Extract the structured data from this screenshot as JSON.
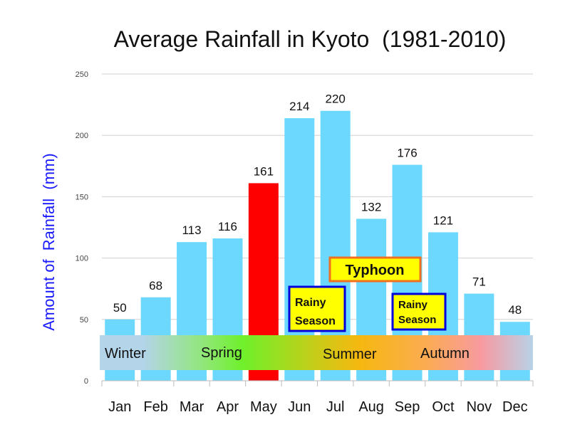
{
  "chart_data": {
    "type": "bar",
    "title": "Average Rainfall in Kyoto  (1981-2010)",
    "xlabel": "",
    "ylabel": "Amount of  Rainfall  (mm)",
    "ylim": [
      0,
      250
    ],
    "yticks": [
      0,
      50,
      100,
      150,
      200,
      250
    ],
    "grid": true,
    "categories": [
      "Jan",
      "Feb",
      "Mar",
      "Apr",
      "May",
      "Jun",
      "Jul",
      "Aug",
      "Sep",
      "Oct",
      "Nov",
      "Dec"
    ],
    "values": [
      50,
      68,
      113,
      116,
      161,
      214,
      220,
      132,
      176,
      121,
      71,
      48
    ],
    "highlight_index": 4,
    "colors": {
      "bar": "#6dd8fd",
      "highlight": "#ff0000",
      "highlight_text": "#ff0000",
      "highlight_value": "#1a1aff",
      "ylabel": "#1a1aff"
    },
    "seasons": [
      "Winter",
      "Spring",
      "Summer",
      "Autumn"
    ],
    "annotations": [
      {
        "text": "Typhoon",
        "border": "#f07020",
        "fill": "#ffff00"
      },
      {
        "text1": "Rainy",
        "text2": "Season",
        "border": "#0000dd",
        "fill": "#ffff00"
      },
      {
        "text1": "Rainy",
        "text2": "Season",
        "border": "#0000dd",
        "fill": "#ffff00"
      }
    ]
  }
}
